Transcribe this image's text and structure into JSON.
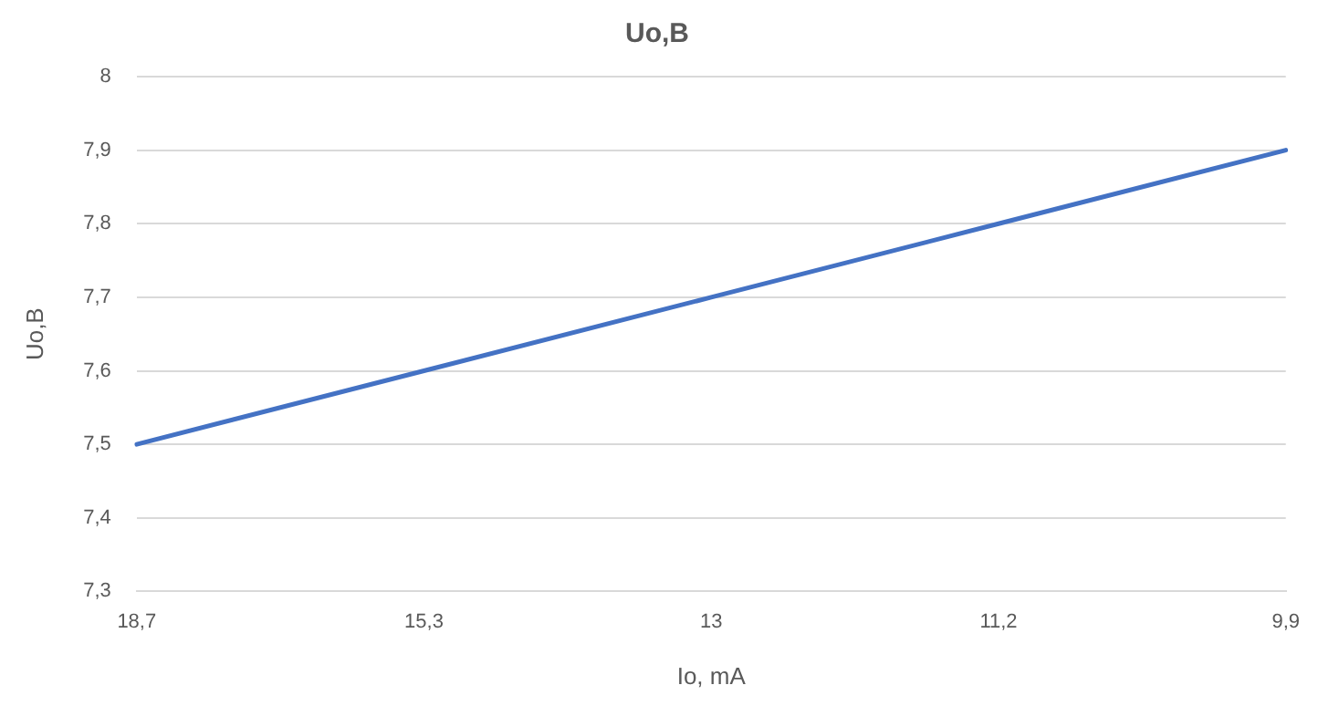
{
  "chart_data": {
    "type": "line",
    "title": "Uo,B",
    "xlabel": "Io, mA",
    "ylabel": "Uo,B",
    "categories": [
      "18,7",
      "15,3",
      "13",
      "11,2",
      "9,9"
    ],
    "series": [
      {
        "color": "#4472c4",
        "values": [
          7.5,
          7.6,
          7.7,
          7.8,
          7.9
        ]
      }
    ],
    "ylim": [
      7.3,
      8
    ],
    "yticks": [
      {
        "value": 7.3,
        "label": "7,3"
      },
      {
        "value": 7.4,
        "label": "7,4"
      },
      {
        "value": 7.5,
        "label": "7,5"
      },
      {
        "value": 7.6,
        "label": "7,6"
      },
      {
        "value": 7.7,
        "label": "7,7"
      },
      {
        "value": 7.8,
        "label": "7,8"
      },
      {
        "value": 7.9,
        "label": "7,9"
      },
      8
    ],
    "grid": "y",
    "legend": false,
    "marker": "none",
    "line_style": "solid"
  }
}
